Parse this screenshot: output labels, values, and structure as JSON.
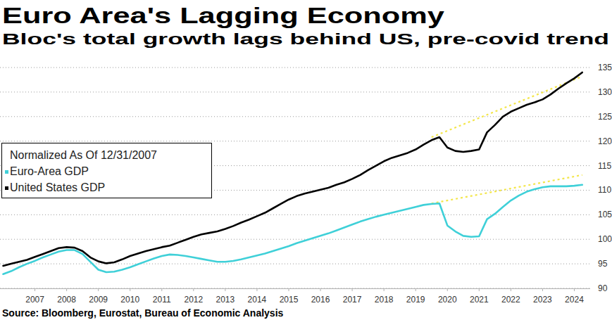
{
  "chart_data": {
    "type": "line",
    "title": "Euro Area's Lagging Economy",
    "subtitle": "Bloc's total growth lags behind US, pre-covid trend",
    "legend_title": "Normalized As Of 12/31/2007",
    "source": "Source: Bloomberg, Eurostat, Bureau of Economic Analysis",
    "legend": "left",
    "grid": true,
    "x": [
      2006.5,
      2006.75,
      2007,
      2007.25,
      2007.5,
      2007.75,
      2008,
      2008.25,
      2008.5,
      2008.75,
      2009,
      2009.25,
      2009.5,
      2009.75,
      2010,
      2010.25,
      2010.5,
      2010.75,
      2011,
      2011.25,
      2011.5,
      2011.75,
      2012,
      2012.25,
      2012.5,
      2012.75,
      2013,
      2013.25,
      2013.5,
      2013.75,
      2014,
      2014.25,
      2014.5,
      2014.75,
      2015,
      2015.25,
      2015.5,
      2015.75,
      2016,
      2016.25,
      2016.5,
      2016.75,
      2017,
      2017.25,
      2017.5,
      2017.75,
      2018,
      2018.25,
      2018.5,
      2018.75,
      2019,
      2019.25,
      2019.5,
      2019.75,
      2020,
      2020.25,
      2020.5,
      2020.75,
      2021,
      2021.25,
      2021.5,
      2021.75,
      2022,
      2022.25,
      2022.5,
      2022.75,
      2023,
      2023.25,
      2023.5,
      2023.75,
      2024,
      2024.25,
      2024.5,
      2024.75
    ],
    "series": [
      {
        "name": "Euro-Area GDP",
        "color": "#3fd0d8",
        "line_style": "solid",
        "values": [
          92.9,
          93.5,
          94.3,
          95.0,
          95.6,
          96.3,
          96.9,
          97.5,
          97.8,
          97.8,
          97.0,
          95.4,
          93.8,
          93.3,
          93.4,
          93.8,
          94.3,
          94.9,
          95.5,
          96.1,
          96.6,
          96.9,
          96.8,
          96.6,
          96.3,
          96.0,
          95.7,
          95.4,
          95.4,
          95.6,
          95.9,
          96.3,
          96.7,
          97.1,
          97.6,
          98.1,
          98.6,
          99.2,
          99.7,
          100.2,
          100.7,
          101.2,
          101.8,
          102.4,
          103.0,
          103.6,
          104.1,
          104.6,
          105.0,
          105.4,
          105.8,
          106.2,
          106.6,
          107.0,
          107.2,
          107.3,
          102.8,
          101.6,
          100.7,
          100.5,
          100.6,
          104.1,
          105.2,
          106.6,
          107.9,
          108.9,
          109.7,
          110.2,
          110.6,
          110.8,
          110.8,
          110.8,
          110.9,
          111.1
        ]
      },
      {
        "name": "United States GDP",
        "color": "#000000",
        "line_style": "solid",
        "values": [
          94.6,
          95.0,
          95.4,
          95.8,
          96.4,
          97.0,
          97.6,
          98.2,
          98.4,
          98.3,
          97.6,
          96.3,
          95.5,
          95.1,
          95.3,
          95.9,
          96.6,
          97.1,
          97.6,
          98.0,
          98.4,
          98.7,
          99.3,
          99.9,
          100.5,
          101.0,
          101.3,
          101.6,
          102.1,
          102.7,
          103.4,
          104.0,
          104.7,
          105.4,
          106.3,
          107.2,
          108.1,
          108.8,
          109.3,
          109.7,
          110.1,
          110.5,
          111.1,
          111.6,
          112.3,
          113.1,
          114.1,
          115.0,
          115.9,
          116.6,
          117.1,
          117.6,
          118.3,
          119.3,
          120.2,
          120.8,
          118.7,
          118.0,
          117.8,
          118.0,
          118.3,
          121.8,
          123.3,
          125.0,
          126.0,
          126.7,
          127.4,
          127.9,
          128.5,
          129.5,
          130.7,
          131.8,
          132.8,
          134.0
        ]
      },
      {
        "color": "#f3e64a",
        "line_style": "dotted",
        "x": [
          2020,
          2024.75
        ],
        "values": [
          107.3,
          113.1
        ]
      },
      {
        "color": "#f3e64a",
        "line_style": "dotted",
        "x": [
          2020,
          2024.75
        ],
        "values": [
          120.8,
          133.2
        ]
      }
    ],
    "xlim": [
      2006.4,
      2025.0
    ],
    "xticks": [
      {
        "value": 2007.5,
        "label": "2007"
      },
      {
        "value": 2008.5,
        "label": "2008"
      },
      {
        "value": 2009.5,
        "label": "2009"
      },
      {
        "value": 2010.5,
        "label": "2010"
      },
      {
        "value": 2011.5,
        "label": "2011"
      },
      {
        "value": 2012.5,
        "label": "2012"
      },
      {
        "value": 2013.5,
        "label": "2013"
      },
      {
        "value": 2014.5,
        "label": "2014"
      },
      {
        "value": 2015.5,
        "label": "2015"
      },
      {
        "value": 2016.5,
        "label": "2016"
      },
      {
        "value": 2017.5,
        "label": "2017"
      },
      {
        "value": 2018.5,
        "label": "2018"
      },
      {
        "value": 2019.5,
        "label": "2019"
      },
      {
        "value": 2020.5,
        "label": "2020"
      },
      {
        "value": 2021.5,
        "label": "2021"
      },
      {
        "value": 2022.5,
        "label": "2022"
      },
      {
        "value": 2023.5,
        "label": "2023"
      },
      {
        "value": 2024.5,
        "label": "2024"
      }
    ],
    "ylim": [
      90,
      135
    ],
    "yticks": [
      90,
      95,
      100,
      105,
      110,
      115,
      120,
      125,
      130,
      135
    ]
  }
}
